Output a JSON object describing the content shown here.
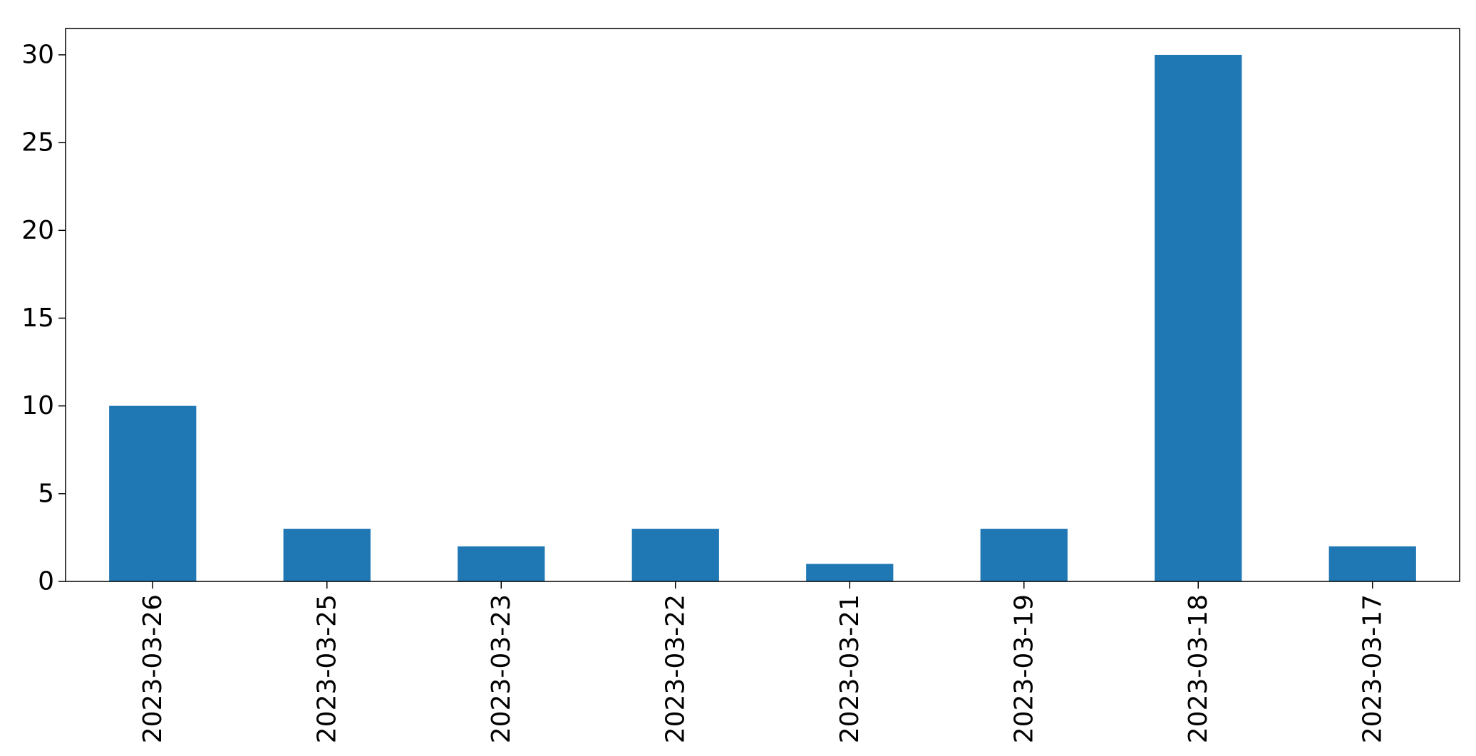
{
  "chart_data": {
    "type": "bar",
    "categories": [
      "2023-03-26",
      "2023-03-25",
      "2023-03-23",
      "2023-03-22",
      "2023-03-21",
      "2023-03-19",
      "2023-03-18",
      "2023-03-17"
    ],
    "values": [
      10,
      3,
      2,
      3,
      1,
      3,
      30,
      2
    ],
    "title": "",
    "xlabel": "",
    "ylabel": "",
    "ylim": [
      0,
      31.5
    ],
    "yticks": [
      0,
      5,
      10,
      15,
      20,
      25,
      30
    ],
    "grid": false,
    "bar_color": "#1f77b4"
  }
}
